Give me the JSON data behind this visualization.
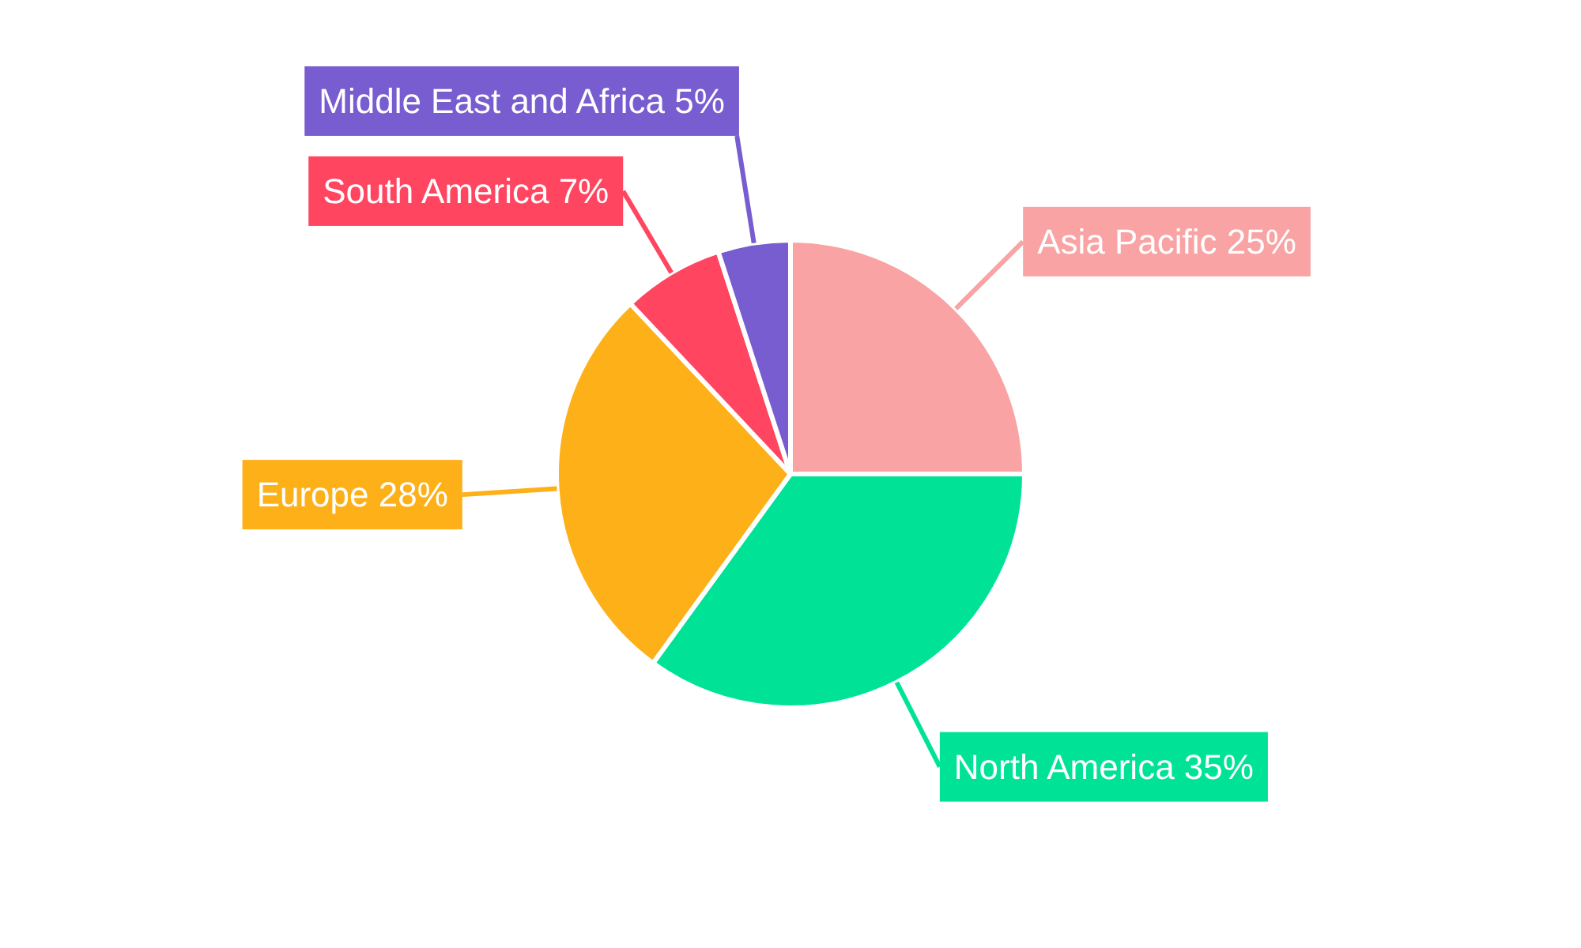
{
  "chart_data": {
    "type": "pie",
    "categories": [
      "Asia Pacific",
      "North America",
      "Europe",
      "South America",
      "Middle East and Africa"
    ],
    "values": [
      25,
      35,
      28,
      7,
      5
    ],
    "colors": [
      "#f9a3a4",
      "#00e396",
      "#feb019",
      "#ff4560",
      "#775dd0"
    ],
    "value_labels": [
      "25%",
      "35%",
      "28%",
      "7%",
      "5%"
    ]
  }
}
